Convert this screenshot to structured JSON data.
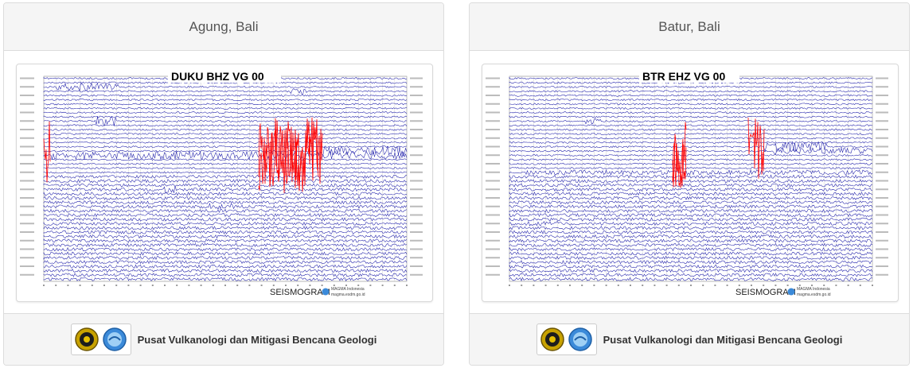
{
  "cards": [
    {
      "title": "Agung, Bali",
      "seismogram": {
        "station": "DUKU BHZ VG 00",
        "footer_brand": "SEISMOGRAM",
        "footer_credit": "MAGMA Indonesia",
        "footer_site": "magma.esdm.go.id",
        "colors": {
          "trace_primary": "#1a1aa8",
          "trace_event": "#ff0000",
          "grid": "#c8c8c8"
        }
      },
      "footer": {
        "text": "Pusat Vulkanologi dan Mitigasi Bencana Geologi"
      }
    },
    {
      "title": "Batur, Bali",
      "seismogram": {
        "station": "BTR EHZ VG 00",
        "footer_brand": "SEISMOGRAM",
        "footer_credit": "MAGMA Indonesia",
        "footer_site": "magma.esdm.go.id",
        "colors": {
          "trace_primary": "#1a1aa8",
          "trace_event": "#ff0000",
          "grid": "#c8c8c8"
        }
      },
      "footer": {
        "text": "Pusat Vulkanologi dan Mitigasi Bencana Geologi"
      }
    }
  ],
  "logos": [
    {
      "name": "esdm-emblem-icon",
      "color": "#c8a200"
    },
    {
      "name": "magma-logo-icon",
      "color": "#3b8ad9"
    }
  ]
}
